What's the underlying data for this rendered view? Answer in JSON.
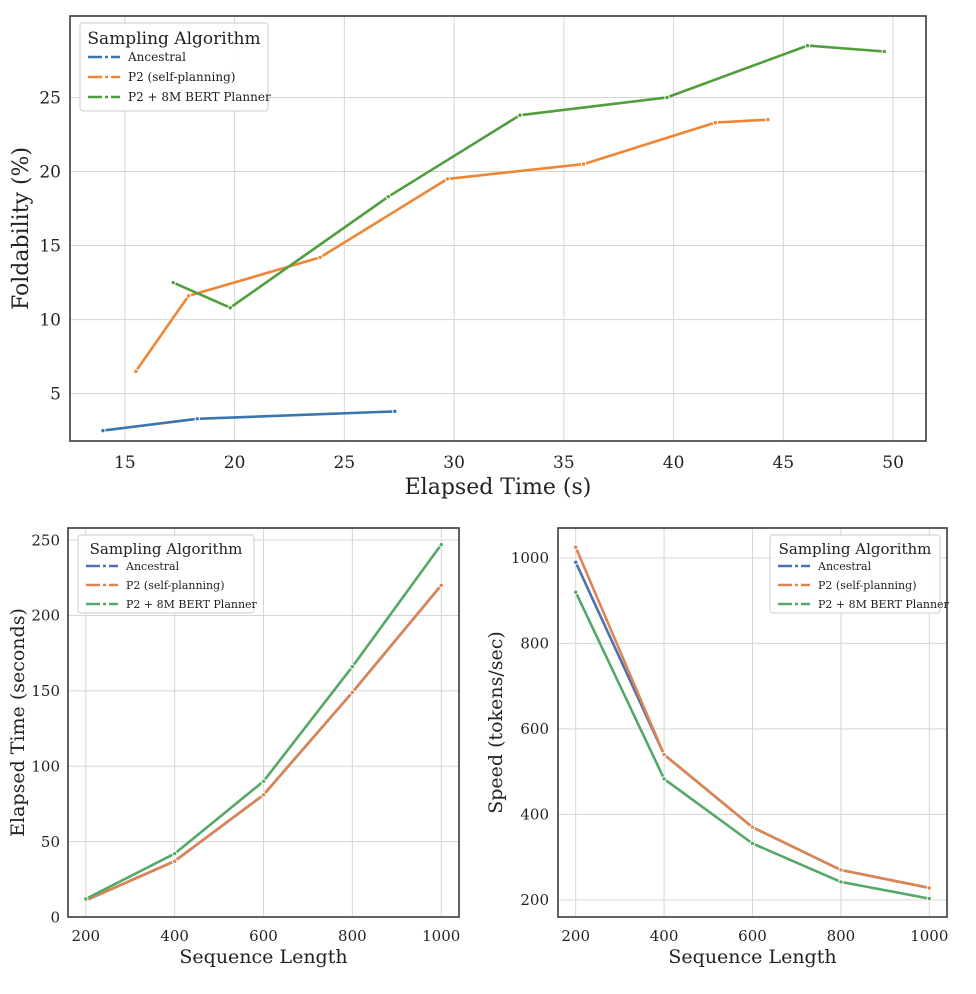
{
  "chart_data": [
    {
      "type": "line",
      "id": "foldability-vs-time",
      "xlabel": "Elapsed Time (s)",
      "ylabel": "Foldability (%)",
      "xlim": [
        12.5,
        51.5
      ],
      "ylim": [
        1.8,
        30.5
      ],
      "xticks": [
        15,
        20,
        25,
        30,
        35,
        40,
        45,
        50
      ],
      "yticks": [
        5,
        10,
        15,
        20,
        25
      ],
      "grid": true,
      "legend": {
        "title": "Sampling Algorithm",
        "position": "top-left"
      },
      "series": [
        {
          "name": "Ancestral",
          "color": "#3b75af",
          "x": [
            14.0,
            18.3,
            27.3
          ],
          "y": [
            2.5,
            3.3,
            3.8
          ]
        },
        {
          "name": "P2 (self-planning)",
          "color": "#ef8636",
          "x": [
            15.5,
            17.9,
            23.9,
            29.7,
            35.9,
            41.9,
            44.3
          ],
          "y": [
            6.5,
            11.6,
            14.2,
            19.5,
            20.5,
            23.3,
            23.5
          ]
        },
        {
          "name": "P2 + 8M BERT Planner",
          "color": "#519e3e",
          "x": [
            17.2,
            19.8,
            27.0,
            33.0,
            39.7,
            46.1,
            49.6
          ],
          "y": [
            12.5,
            10.8,
            18.3,
            23.8,
            25.0,
            28.5,
            28.1
          ]
        }
      ]
    },
    {
      "type": "line",
      "id": "elapsed-vs-length",
      "xlabel": "Sequence Length",
      "ylabel": "Elapsed Time (seconds)",
      "xlim": [
        160,
        1040
      ],
      "ylim": [
        0,
        258
      ],
      "xticks": [
        200,
        400,
        600,
        800,
        1000
      ],
      "yticks": [
        0,
        50,
        100,
        150,
        200,
        250
      ],
      "grid": true,
      "legend": {
        "title": "Sampling Algorithm",
        "position": "top-left"
      },
      "series": [
        {
          "name": "Ancestral",
          "color": "#4c72b0",
          "x": [
            200,
            400,
            600,
            800,
            1000
          ],
          "y": [
            11,
            37,
            81,
            149,
            220
          ]
        },
        {
          "name": "P2 (self-planning)",
          "color": "#dd8452",
          "x": [
            200,
            400,
            600,
            800,
            1000
          ],
          "y": [
            11,
            37,
            81,
            149,
            220
          ]
        },
        {
          "name": "P2 + 8M BERT Planner",
          "color": "#55a868",
          "x": [
            200,
            400,
            600,
            800,
            1000
          ],
          "y": [
            12,
            42,
            90,
            166,
            247
          ]
        }
      ]
    },
    {
      "type": "line",
      "id": "speed-vs-length",
      "xlabel": "Sequence Length",
      "ylabel": "Speed (tokens/sec)",
      "xlim": [
        160,
        1040
      ],
      "ylim": [
        160,
        1070
      ],
      "xticks": [
        200,
        400,
        600,
        800,
        1000
      ],
      "yticks": [
        200,
        400,
        600,
        800,
        1000
      ],
      "grid": true,
      "legend": {
        "title": "Sampling Algorithm",
        "position": "top-right"
      },
      "series": [
        {
          "name": "Ancestral",
          "color": "#4c72b0",
          "x": [
            200,
            400,
            600,
            800,
            1000
          ],
          "y": [
            990,
            540,
            370,
            270,
            228
          ]
        },
        {
          "name": "P2 (self-planning)",
          "color": "#dd8452",
          "x": [
            200,
            400,
            600,
            800,
            1000
          ],
          "y": [
            1025,
            540,
            370,
            270,
            228
          ]
        },
        {
          "name": "P2 + 8M BERT Planner",
          "color": "#55a868",
          "x": [
            200,
            400,
            600,
            800,
            1000
          ],
          "y": [
            920,
            483,
            332,
            242,
            203
          ]
        }
      ]
    }
  ]
}
